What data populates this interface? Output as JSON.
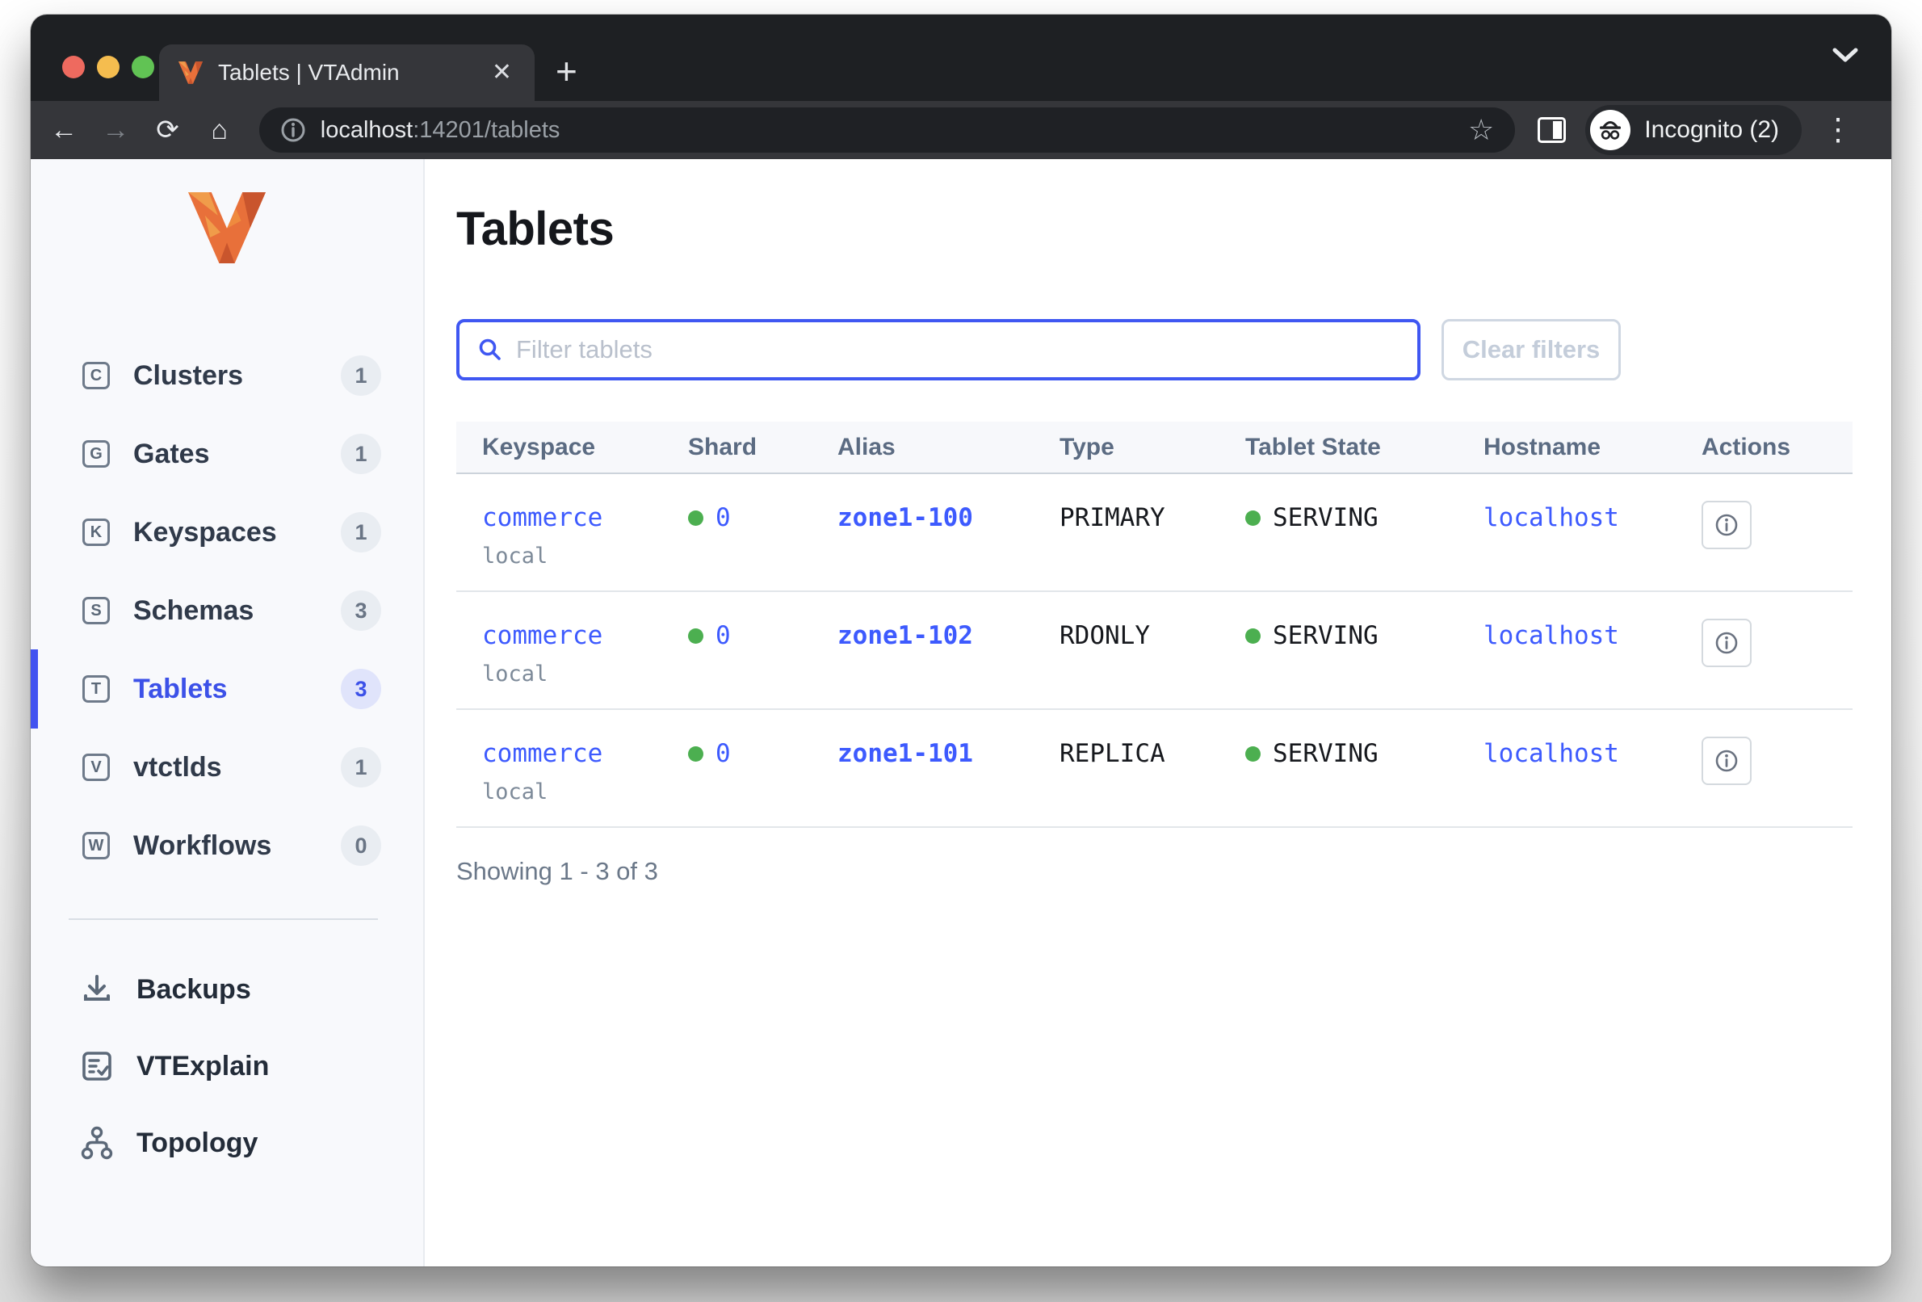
{
  "browser": {
    "tab_title": "Tablets | VTAdmin",
    "url_host": "localhost",
    "url_rest": ":14201/tablets",
    "incognito_label": "Incognito (2)",
    "icons": {
      "back": "←",
      "forward": "→",
      "reload": "⟳",
      "home": "⌂",
      "close_tab": "✕",
      "new_tab": "+",
      "star": "☆",
      "more": "⋮"
    }
  },
  "sidebar": {
    "items": [
      {
        "letter": "C",
        "label": "Clusters",
        "count": "1",
        "active": false
      },
      {
        "letter": "G",
        "label": "Gates",
        "count": "1",
        "active": false
      },
      {
        "letter": "K",
        "label": "Keyspaces",
        "count": "1",
        "active": false
      },
      {
        "letter": "S",
        "label": "Schemas",
        "count": "3",
        "active": false
      },
      {
        "letter": "T",
        "label": "Tablets",
        "count": "3",
        "active": true
      },
      {
        "letter": "V",
        "label": "vtctlds",
        "count": "1",
        "active": false
      },
      {
        "letter": "W",
        "label": "Workflows",
        "count": "0",
        "active": false
      }
    ],
    "tools": [
      {
        "icon": "download-icon",
        "label": "Backups"
      },
      {
        "icon": "vtexplain-icon",
        "label": "VTExplain"
      },
      {
        "icon": "topology-icon",
        "label": "Topology"
      }
    ]
  },
  "main": {
    "title": "Tablets",
    "filter_placeholder": "Filter tablets",
    "clear_button": "Clear filters",
    "table": {
      "columns": [
        "Keyspace",
        "Shard",
        "Alias",
        "Type",
        "Tablet State",
        "Hostname",
        "Actions"
      ],
      "rows": [
        {
          "keyspace": "commerce",
          "cluster": "local",
          "shard": "0",
          "alias": "zone1-100",
          "type": "PRIMARY",
          "state": "SERVING",
          "hostname": "localhost"
        },
        {
          "keyspace": "commerce",
          "cluster": "local",
          "shard": "0",
          "alias": "zone1-102",
          "type": "RDONLY",
          "state": "SERVING",
          "hostname": "localhost"
        },
        {
          "keyspace": "commerce",
          "cluster": "local",
          "shard": "0",
          "alias": "zone1-101",
          "type": "REPLICA",
          "state": "SERVING",
          "hostname": "localhost"
        }
      ]
    },
    "showing": "Showing 1 - 3 of 3"
  },
  "colors": {
    "accent_blue": "#3d5afe",
    "active_nav_blue": "#3c51e8",
    "serving_green": "#4caf50",
    "vitess_orange": "#ed7d31",
    "chrome_dark": "#1e2023",
    "chrome_toolbar": "#35363a"
  }
}
